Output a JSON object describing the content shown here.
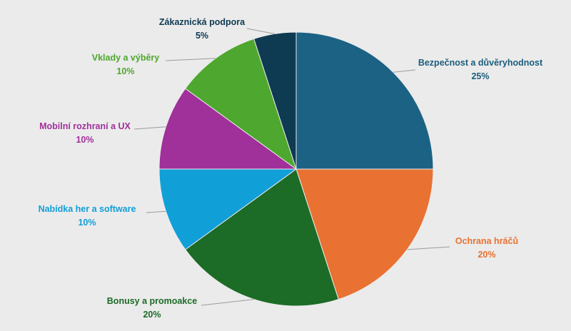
{
  "chart_data": {
    "type": "pie",
    "title": "",
    "start": "12 o'clock, clockwise",
    "slices": [
      {
        "label": "Bezpečnost a důvěryhodnost",
        "value": 25,
        "value_label": "25%",
        "color": "#1b6284",
        "label_color": "#1b5d7c"
      },
      {
        "label": "Ochrana hráčů",
        "value": 20,
        "value_label": "20%",
        "color": "#e97131",
        "label_color": "#e97131"
      },
      {
        "label": "Bonusy a promoakce",
        "value": 20,
        "value_label": "20%",
        "color": "#1c6b27",
        "label_color": "#1c6b27"
      },
      {
        "label": "Nabídka her a software",
        "value": 10,
        "value_label": "10%",
        "color": "#119fd8",
        "label_color": "#119fd8"
      },
      {
        "label": "Mobilní rozhraní a UX",
        "value": 10,
        "value_label": "10%",
        "color": "#a0309a",
        "label_color": "#a0309a"
      },
      {
        "label": "Vklady a výběry",
        "value": 10,
        "value_label": "10%",
        "color": "#4ea72e",
        "label_color": "#4ea72e"
      },
      {
        "label": "Zákaznická podpora",
        "value": 5,
        "value_label": "5%",
        "color": "#0e3a52",
        "label_color": "#0e3a52"
      }
    ]
  }
}
